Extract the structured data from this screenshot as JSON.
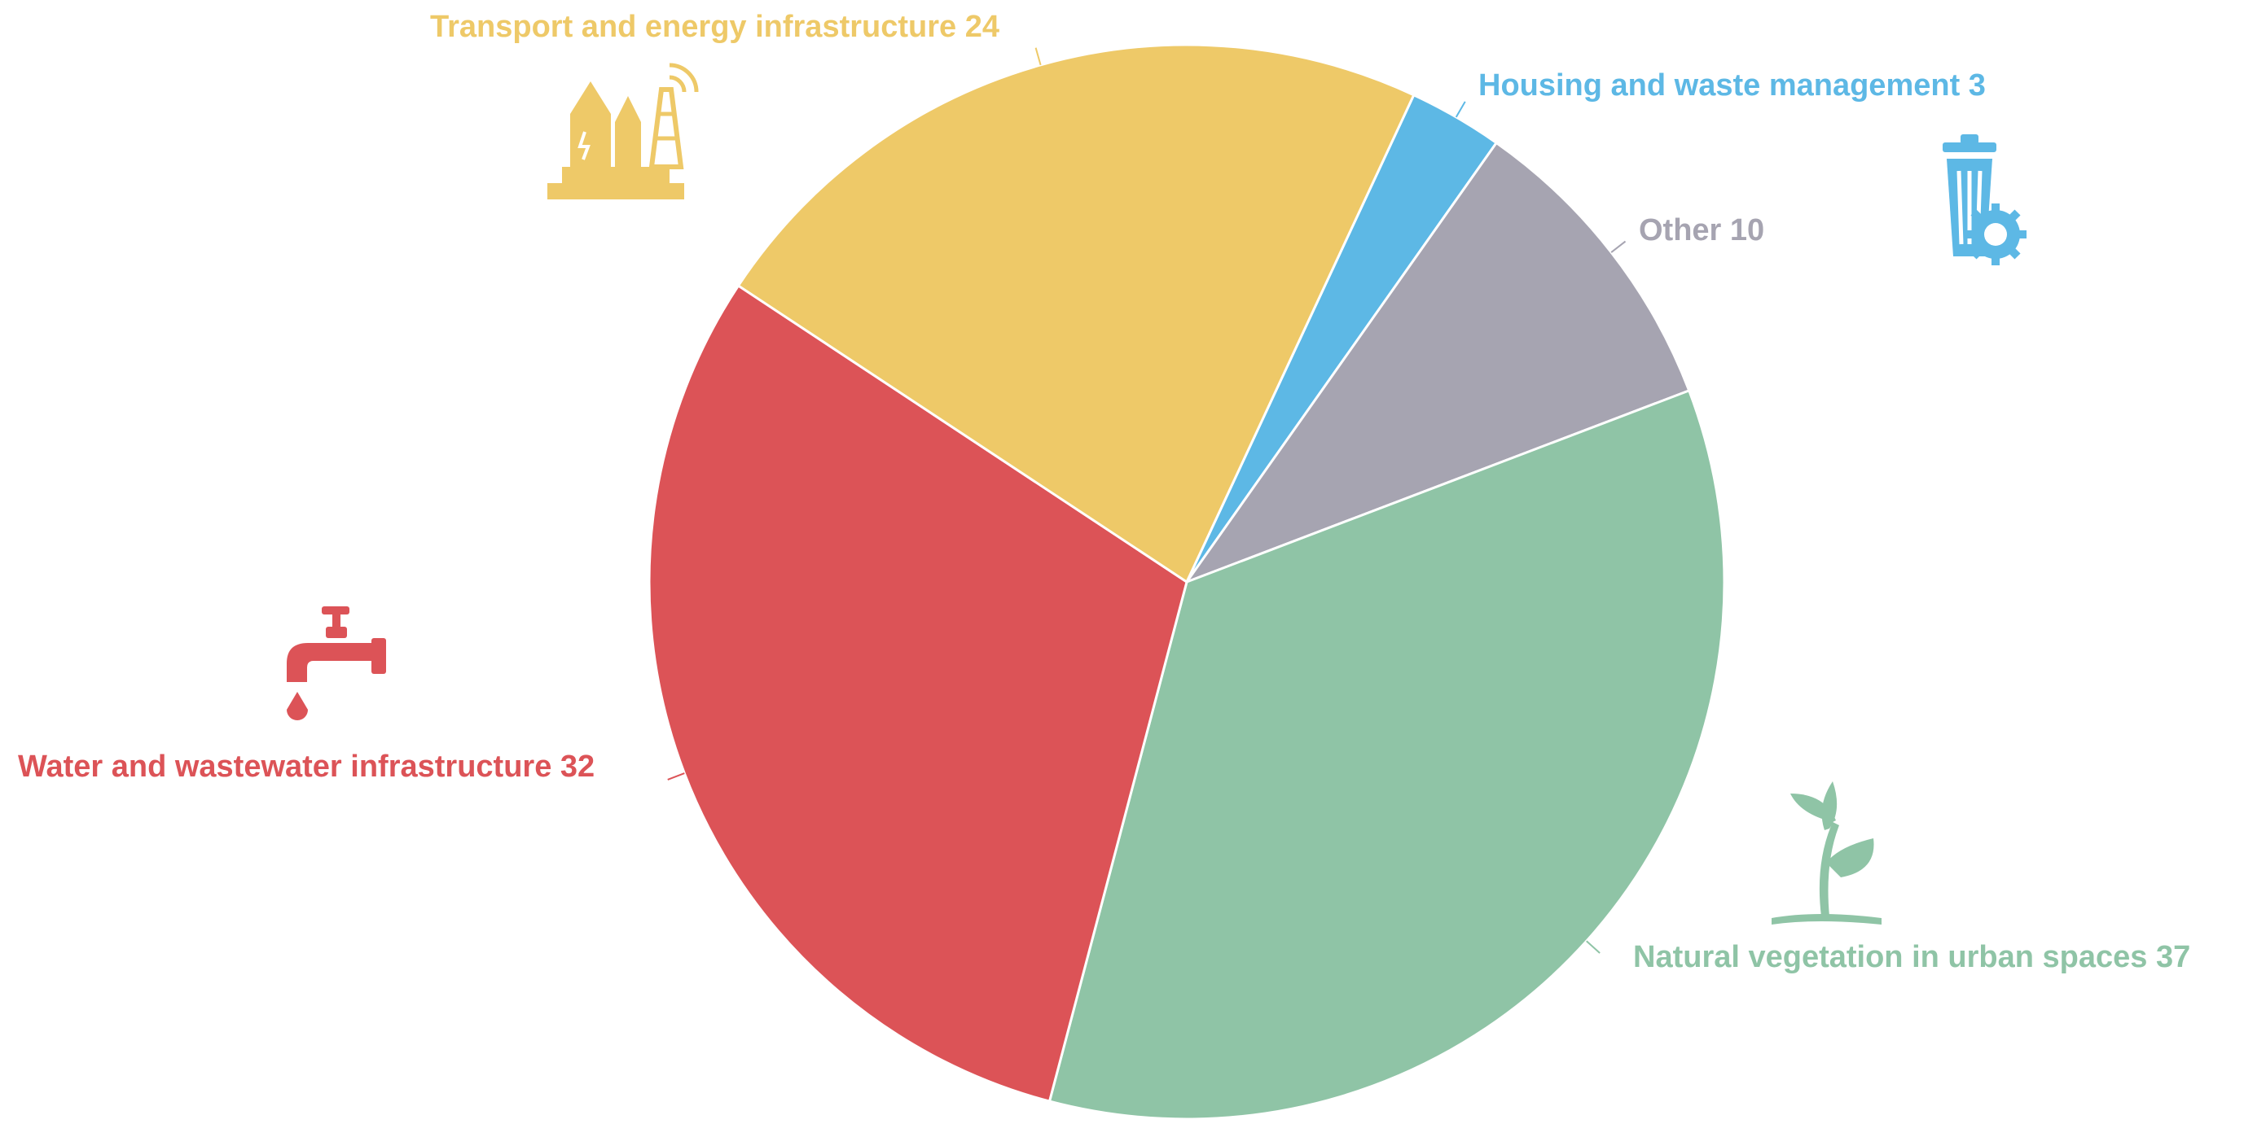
{
  "chart_data": {
    "type": "pie",
    "title": "",
    "start": "top, clockwise",
    "slices": [
      {
        "name": "Housing and waste management",
        "value": 3,
        "color": "#5db8e5",
        "icon": "trash-bin-gear-icon",
        "label": "Housing and waste management 3"
      },
      {
        "name": "Other",
        "value": 10,
        "color": "#a6a4b1",
        "icon": "",
        "label": "Other 10"
      },
      {
        "name": "Natural vegetation in urban spaces",
        "value": 37,
        "color": "#8fc4a6",
        "icon": "plant-sprout-icon",
        "label": "Natural vegetation in urban spaces 37"
      },
      {
        "name": "Water and wastewater infrastructure",
        "value": 32,
        "color": "#dc5357",
        "icon": "water-tap-icon",
        "label": "Water and wastewater infrastructure 32"
      },
      {
        "name": "Transport and energy infrastructure",
        "value": 24,
        "color": "#eec968",
        "icon": "power-plant-tower-icon",
        "label": "Transport and energy infrastructure 24"
      }
    ]
  }
}
